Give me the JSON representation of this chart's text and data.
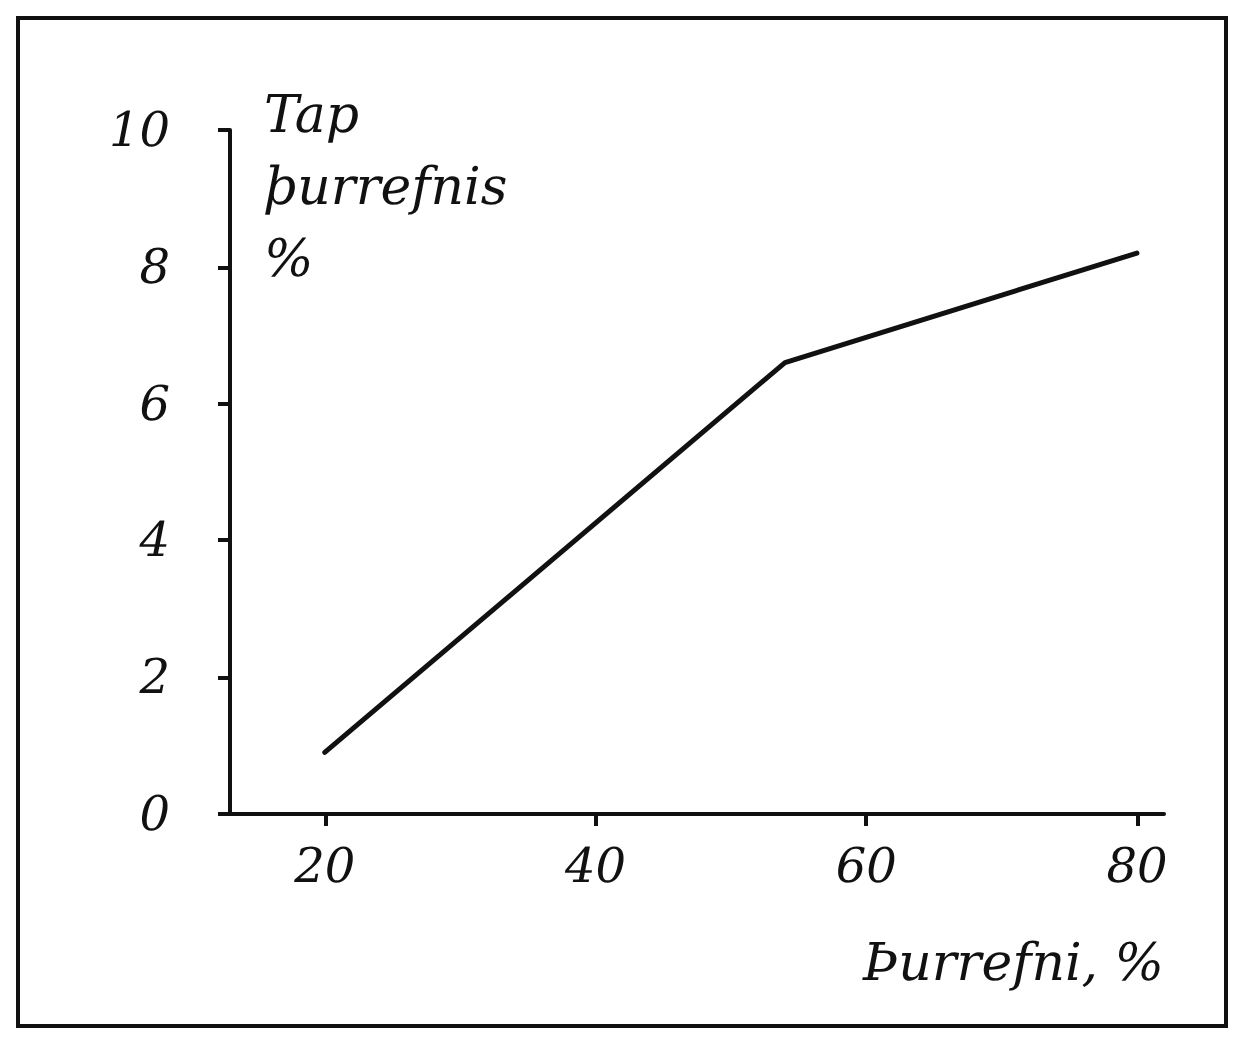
{
  "chart_data": {
    "type": "line",
    "xlabel": "Þurrefni, %",
    "ylabel": "Tap þurrefnis %",
    "x": [
      20,
      54,
      80
    ],
    "series": [
      {
        "color": "#111111",
        "values": [
          0.9,
          6.6,
          8.2
        ]
      }
    ],
    "xlim": [
      13,
      82
    ],
    "xticks": [
      20,
      40,
      60,
      80
    ],
    "ylim": [
      0,
      10
    ],
    "yticks": [
      0,
      2,
      4,
      6,
      8,
      10
    ],
    "grid": false,
    "marker": "none",
    "line_style": "solid"
  }
}
